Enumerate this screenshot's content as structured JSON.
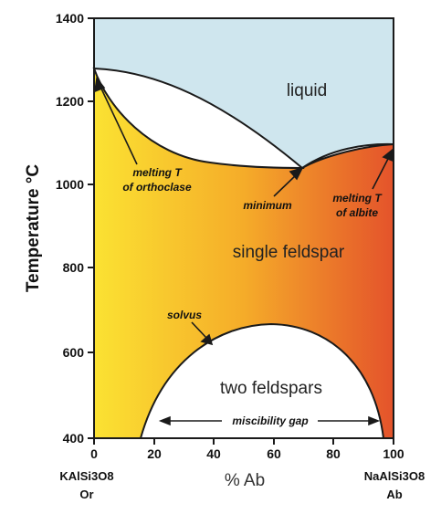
{
  "axes": {
    "y_label": "Temperature °C",
    "y_ticks": [
      "1400",
      "1200",
      "1000",
      "800",
      "600",
      "400"
    ],
    "x_label": "% Ab",
    "x_ticks": [
      "0",
      "20",
      "40",
      "60",
      "80",
      "100"
    ]
  },
  "regions": {
    "liquid": "liquid",
    "single": "single feldspar",
    "two": "two feldspars"
  },
  "annotations": {
    "melt_or_1": "melting T",
    "melt_or_2": "of orthoclase",
    "minimum": "minimum",
    "melt_ab_1": "melting T",
    "melt_ab_2": "of albite",
    "solvus": "solvus",
    "gap": "miscibility gap"
  },
  "endmembers": {
    "left_formula": "KAlSi3O8",
    "left_name": "Or",
    "right_formula": "NaAlSi3O8",
    "right_name": "Ab"
  },
  "colors": {
    "liquid": "#cfe6ee",
    "gradient_left": "#fbe232",
    "gradient_mid": "#f5ac29",
    "gradient_right": "#e4532b",
    "outline": "#1a1a1a"
  }
}
